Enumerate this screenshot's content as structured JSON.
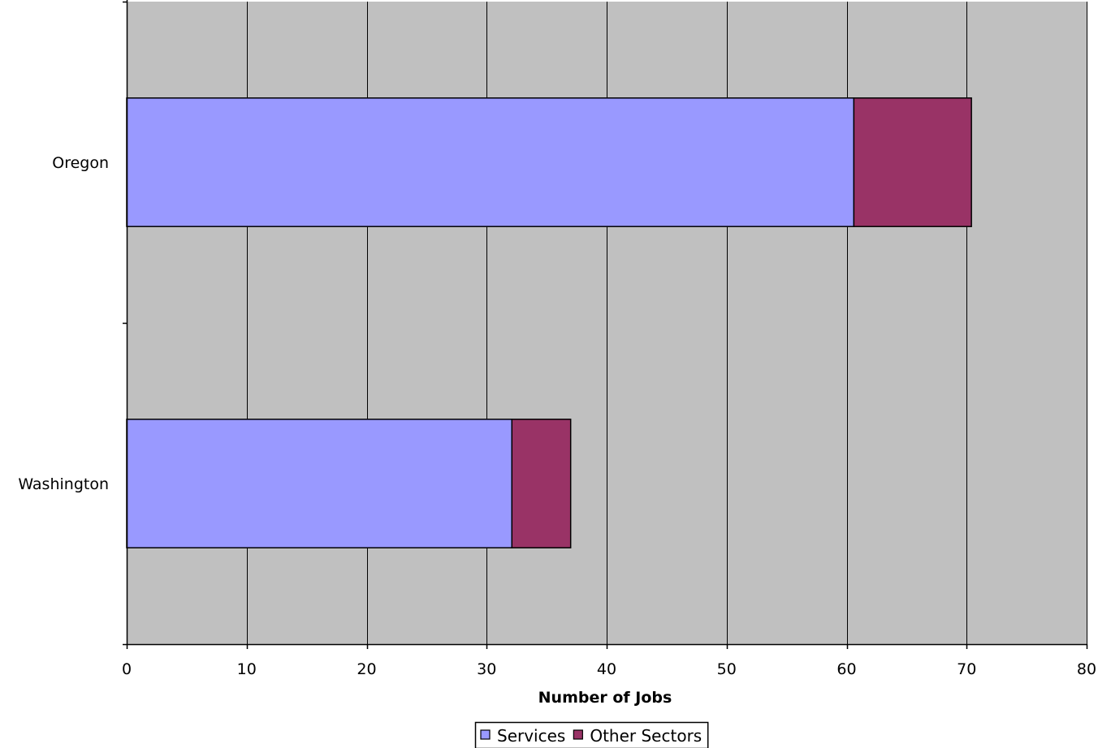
{
  "chart_data": {
    "type": "bar",
    "orientation": "horizontal",
    "stacked": true,
    "categories": [
      "Oregon",
      "Washington"
    ],
    "series": [
      {
        "name": "Services",
        "values": [
          60.6,
          32.1
        ],
        "color": "#9999ff"
      },
      {
        "name": "Other Sectors",
        "values": [
          9.8,
          4.9
        ],
        "color": "#993366"
      }
    ],
    "title": "",
    "xlabel": "Number of Jobs",
    "ylabel": "",
    "xlim": [
      0,
      80
    ],
    "xticks": [
      0,
      10,
      20,
      30,
      40,
      50,
      60,
      70,
      80
    ],
    "grid": "vertical",
    "plot_background": "#c0c0c0",
    "legend_position": "bottom"
  }
}
